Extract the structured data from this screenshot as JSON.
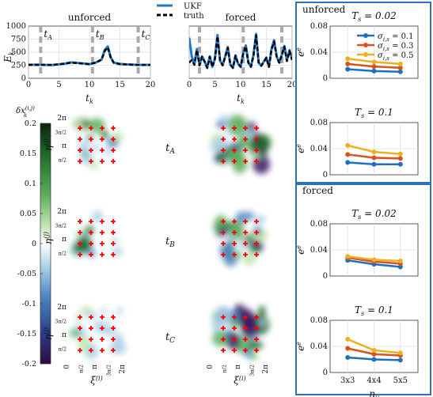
{
  "labels": {
    "legend_ukf": "UKF",
    "legend_truth": "truth",
    "panel_unforced": "unforced",
    "panel_forced": "forced",
    "ylabel_energy": "E_k",
    "xlabel_time": "t_k",
    "time_markers": [
      "t_A",
      "t_B",
      "t_C"
    ],
    "time_row_labels": [
      "t_A",
      "t_B",
      "t_C"
    ],
    "colorbar_label": "δx_k^(i,j)",
    "map_ylabel": "η^(j)",
    "map_xlabel": "ξ^(i)",
    "map_ticks": [
      "0",
      "π/2",
      "π",
      "3π/2",
      "2π"
    ],
    "right_unforced": "unforced",
    "right_forced": "forced",
    "ts_labels": [
      "T_s = 0.02",
      "T_s = 0.1",
      "T_s = 0.02",
      "T_s = 0.1"
    ],
    "err_ylabel": "e^e",
    "err_xlabel": "n_y"
  },
  "colors": {
    "ukf": "#1f78c8",
    "truth": "#000000",
    "frame": "#2b73b8",
    "series": [
      "#1f6fc0",
      "#d9531e",
      "#edb120"
    ],
    "sensor": "#ff0000"
  },
  "chart_data": [
    {
      "id": "energy_unforced",
      "type": "line",
      "title": "unforced",
      "xlabel": "t_k",
      "ylabel": "E_k",
      "xlim": [
        0,
        20
      ],
      "ylim": [
        0,
        1000
      ],
      "xticks": [
        0,
        5,
        10,
        15,
        20
      ],
      "yticks": [
        0,
        250,
        500,
        750,
        1000
      ],
      "x": [
        0,
        1,
        2,
        3,
        4,
        5,
        6,
        7,
        8,
        9,
        10,
        11,
        12,
        12.5,
        13,
        13.5,
        14,
        15,
        16,
        17,
        18,
        19,
        20
      ],
      "series": [
        {
          "name": "UKF",
          "values": [
            260,
            260,
            262,
            255,
            255,
            268,
            280,
            305,
            295,
            285,
            270,
            300,
            360,
            540,
            610,
            400,
            300,
            275,
            268,
            262,
            258,
            258,
            258
          ]
        },
        {
          "name": "truth",
          "values": [
            258,
            258,
            258,
            255,
            255,
            268,
            282,
            300,
            290,
            282,
            270,
            298,
            355,
            520,
            590,
            390,
            295,
            272,
            266,
            260,
            256,
            256,
            256
          ]
        }
      ],
      "markers": {
        "t_A": 2,
        "t_B": 10.5,
        "t_C": 18
      }
    },
    {
      "id": "energy_forced",
      "type": "line",
      "title": "forced",
      "xlabel": "t_k",
      "xlim": [
        0,
        20
      ],
      "ylim": [
        0,
        1000
      ],
      "xticks": [
        0,
        5,
        10,
        15,
        20
      ],
      "x": [
        0,
        0.5,
        1,
        1.5,
        2,
        2.5,
        3,
        3.5,
        4,
        4.5,
        5,
        5.5,
        6,
        6.5,
        7,
        7.5,
        8,
        8.5,
        9,
        9.5,
        10,
        10.5,
        11,
        11.5,
        12,
        12.5,
        13,
        13.5,
        14,
        14.5,
        15,
        15.5,
        16,
        16.5,
        17,
        17.5,
        18,
        18.5,
        19,
        19.5,
        20
      ],
      "series": [
        {
          "name": "UKF",
          "values": [
            780,
            420,
            260,
            560,
            250,
            420,
            320,
            200,
            420,
            220,
            380,
            830,
            340,
            250,
            420,
            600,
            260,
            200,
            440,
            280,
            220,
            480,
            630,
            300,
            220,
            450,
            850,
            300,
            240,
            320,
            400,
            220,
            560,
            730,
            420,
            300,
            450,
            620,
            340,
            540,
            360
          ]
        },
        {
          "name": "truth",
          "values": [
            300,
            350,
            260,
            540,
            250,
            410,
            320,
            200,
            410,
            220,
            370,
            800,
            340,
            250,
            410,
            580,
            260,
            200,
            430,
            280,
            220,
            470,
            610,
            300,
            220,
            440,
            820,
            300,
            240,
            310,
            390,
            220,
            550,
            700,
            410,
            300,
            440,
            600,
            330,
            520,
            350
          ]
        }
      ],
      "markers": {
        "t_A": 2,
        "t_B": 10.5,
        "t_C": 18
      }
    },
    {
      "id": "error_unforced_ts002",
      "type": "line",
      "title": "T_s = 0.02",
      "ylabel": "e^e",
      "categories": [
        "3x3",
        "4x4",
        "5x5"
      ],
      "ylim": [
        0,
        0.08
      ],
      "yticks": [
        0,
        0.04,
        0.08
      ],
      "series": [
        {
          "name": "σ_{i,s} = 0.1",
          "values": [
            0.014,
            0.011,
            0.01
          ]
        },
        {
          "name": "σ_{i,s} = 0.3",
          "values": [
            0.022,
            0.018,
            0.016
          ]
        },
        {
          "name": "σ_{i,s} = 0.5",
          "values": [
            0.03,
            0.025,
            0.022
          ]
        }
      ]
    },
    {
      "id": "error_unforced_ts01",
      "type": "line",
      "title": "T_s = 0.1",
      "ylabel": "e^e",
      "categories": [
        "3x3",
        "4x4",
        "5x5"
      ],
      "ylim": [
        0,
        0.08
      ],
      "yticks": [
        0,
        0.04,
        0.08
      ],
      "series": [
        {
          "name": "σ_{i,s} = 0.1",
          "values": [
            0.019,
            0.016,
            0.016
          ]
        },
        {
          "name": "σ_{i,s} = 0.3",
          "values": [
            0.031,
            0.026,
            0.025
          ]
        },
        {
          "name": "σ_{i,s} = 0.5",
          "values": [
            0.045,
            0.035,
            0.032
          ]
        }
      ]
    },
    {
      "id": "error_forced_ts002",
      "type": "line",
      "title": "T_s = 0.02",
      "ylabel": "e^e",
      "categories": [
        "3x3",
        "4x4",
        "5x5"
      ],
      "ylim": [
        0,
        0.08
      ],
      "yticks": [
        0,
        0.04,
        0.08
      ],
      "series": [
        {
          "name": "σ_{i,s} = 0.1",
          "values": [
            0.024,
            0.018,
            0.014
          ]
        },
        {
          "name": "σ_{i,s} = 0.3",
          "values": [
            0.028,
            0.022,
            0.019
          ]
        },
        {
          "name": "σ_{i,s} = 0.5",
          "values": [
            0.03,
            0.025,
            0.023
          ]
        }
      ]
    },
    {
      "id": "error_forced_ts01",
      "type": "line",
      "title": "T_s = 0.1",
      "ylabel": "e^e",
      "xlabel": "n_y",
      "categories": [
        "3x3",
        "4x4",
        "5x5"
      ],
      "ylim": [
        0,
        0.08
      ],
      "yticks": [
        0,
        0.04,
        0.08
      ],
      "series": [
        {
          "name": "σ_{i,s} = 0.1",
          "values": [
            0.023,
            0.02,
            0.019
          ]
        },
        {
          "name": "σ_{i,s} = 0.3",
          "values": [
            0.037,
            0.028,
            0.026
          ]
        },
        {
          "name": "σ_{i,s} = 0.5",
          "values": [
            0.051,
            0.034,
            0.03
          ]
        }
      ]
    },
    {
      "id": "colorbar",
      "type": "heatmap",
      "title": "δx_k^(i,j)",
      "ylim": [
        -0.2,
        0.2
      ],
      "yticks": [
        0.2,
        0.15,
        0.1,
        0.05,
        0,
        -0.05,
        -0.1,
        -0.15,
        -0.2
      ],
      "colormap": [
        "#2d0a3f",
        "#2b3f8a",
        "#4f86be",
        "#a9cfe6",
        "#ffffff",
        "#bfe3b0",
        "#5fae5c",
        "#1f6a2a",
        "#0d2310"
      ]
    }
  ]
}
